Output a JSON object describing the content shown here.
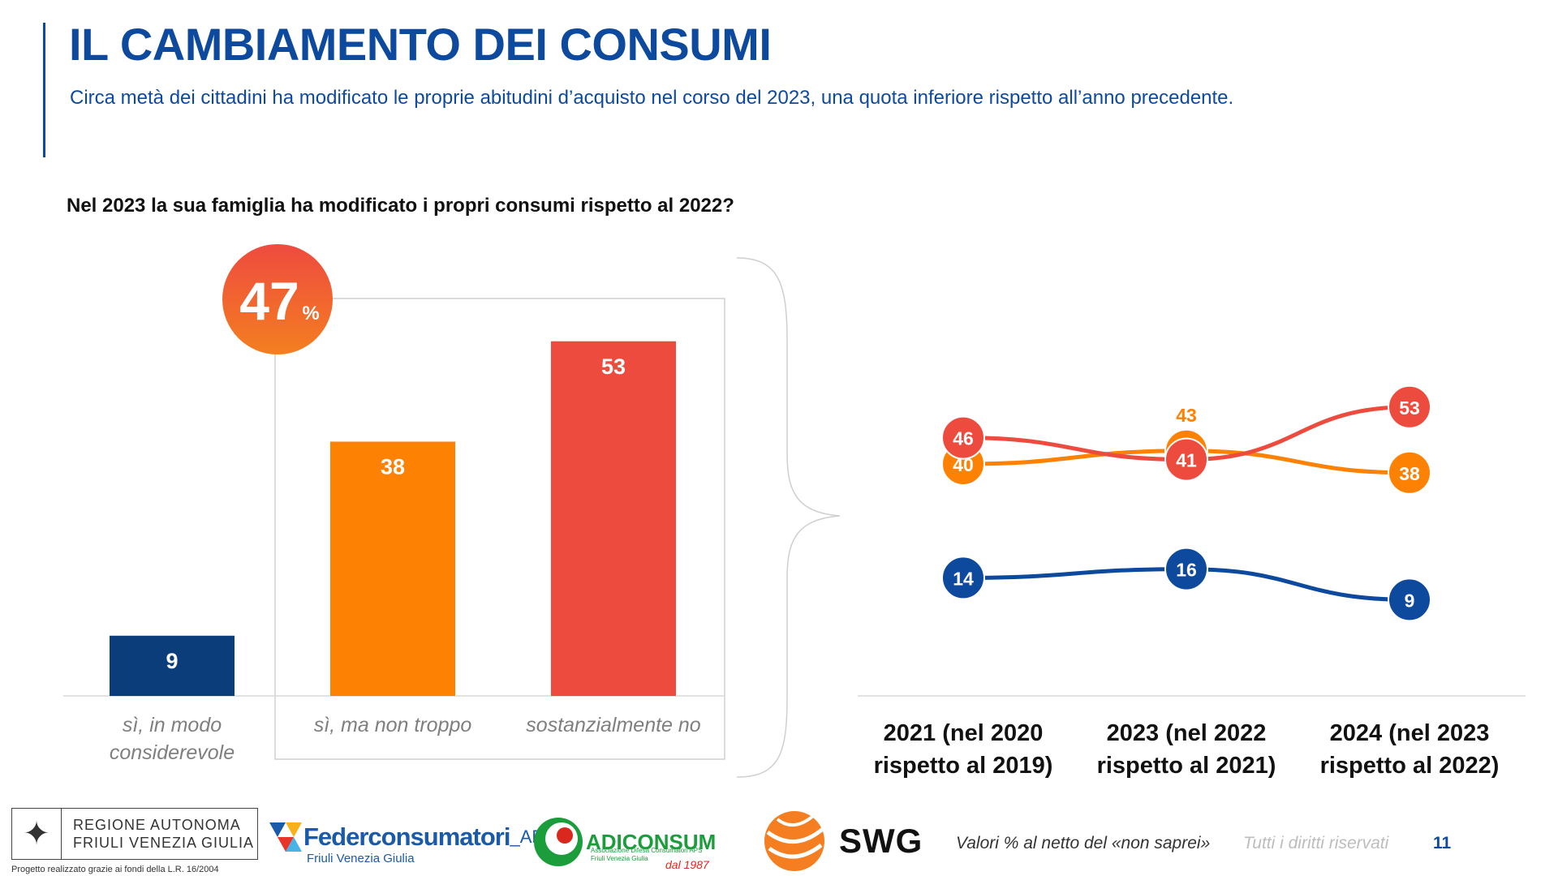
{
  "header": {
    "title": "IL CAMBIAMENTO DEI CONSUMI",
    "subtitle": "Circa metà dei cittadini ha modificato le proprie abitudini d’acquisto nel corso del 2023, una quota inferiore rispetto all’anno precedente."
  },
  "question": "Nel 2023 la sua famiglia ha modificato i propri consumi rispetto al 2022?",
  "highlight": {
    "value": "47",
    "unit": "%"
  },
  "colors": {
    "blue": "#0d4a9e",
    "navy": "#0b3d7a",
    "orange": "#fd8203",
    "red": "#ee4b3f"
  },
  "chart_data": [
    {
      "type": "bar",
      "categories": [
        "sì, in modo considerevole",
        "sì, ma non troppo",
        "sostanzialmente no"
      ],
      "values": [
        9,
        38,
        53
      ],
      "colors": [
        "#0b3d7a",
        "#fd8203",
        "#ee4b3f"
      ],
      "ylim": [
        0,
        60
      ]
    },
    {
      "type": "line",
      "x": [
        "2021 (nel 2020 rispetto al 2019)",
        "2023 (nel 2022 rispetto al 2021)",
        "2024 (nel 2023 rispetto al 2022)"
      ],
      "series": [
        {
          "values": [
            46,
            41,
            53
          ],
          "color": "#ee4b3f"
        },
        {
          "values": [
            40,
            43,
            38
          ],
          "color": "#fd8203"
        },
        {
          "values": [
            14,
            16,
            9
          ],
          "color": "#0d4a9e"
        }
      ],
      "ylim": [
        0,
        60
      ]
    }
  ],
  "footer": {
    "note": "Valori % al netto del «non saprei»",
    "rights": "Tutti i diritti riservati",
    "page": "11",
    "credit": "Progetto realizzato grazie ai fondi della L.R. 16/2004"
  },
  "logos": {
    "regione_line1": "REGIONE AUTONOMA",
    "regione_line2": "FRIULI VENEZIA GIULIA",
    "federconsumatori": "Federconsumatori",
    "federconsumatori_suffix": "_APS",
    "federconsumatori_sub": "Friuli Venezia Giulia",
    "adiconsum": "ADICONSUM",
    "adiconsum_sub1": "Associazione Difesa Consumatori APS",
    "adiconsum_sub2": "Friuli Venezia Giulia",
    "adiconsum_since": "dal 1987",
    "swg": "SWG"
  }
}
